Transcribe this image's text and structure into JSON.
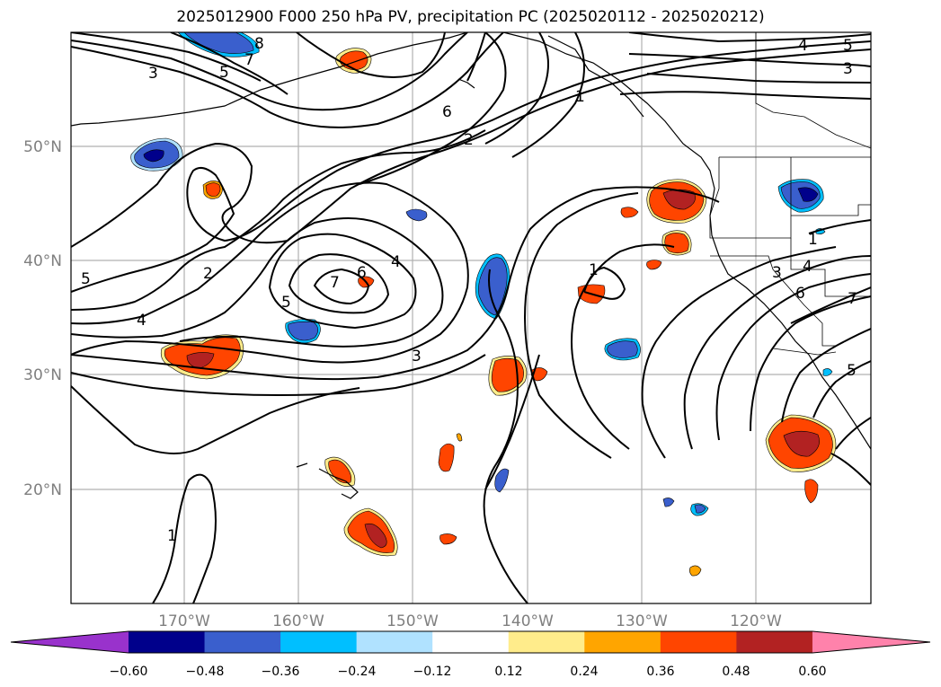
{
  "title": "2025012900 F000 250 hPa PV, precipitation PC (2025020112 - 2025020212)",
  "map": {
    "lat_labels": [
      "50°N",
      "40°N",
      "30°N",
      "20°N"
    ],
    "lon_labels": [
      "170°W",
      "160°W",
      "150°W",
      "140°W",
      "130°W",
      "120°W"
    ],
    "gridlines": true,
    "pv_contour_labels": [
      "8",
      "7",
      "5",
      "3",
      "6",
      "2",
      "1",
      "4",
      "5",
      "3",
      "2",
      "5",
      "4",
      "7",
      "6",
      "4",
      "5",
      "3",
      "1",
      "1",
      "4",
      "3",
      "6",
      "7",
      "5",
      "1"
    ]
  },
  "colorbar": {
    "ticks": [
      "−0.60",
      "−0.48",
      "−0.36",
      "−0.24",
      "−0.12",
      "0.12",
      "0.24",
      "0.36",
      "0.48",
      "0.60"
    ],
    "colors": [
      "#9932cc",
      "#00008b",
      "#3a5fcd",
      "#00bfff",
      "#b0e2ff",
      "#ffffff",
      "#ffec8b",
      "#ffa500",
      "#ff4500",
      "#b22222",
      "#ff82ab"
    ],
    "extend": "both"
  }
}
